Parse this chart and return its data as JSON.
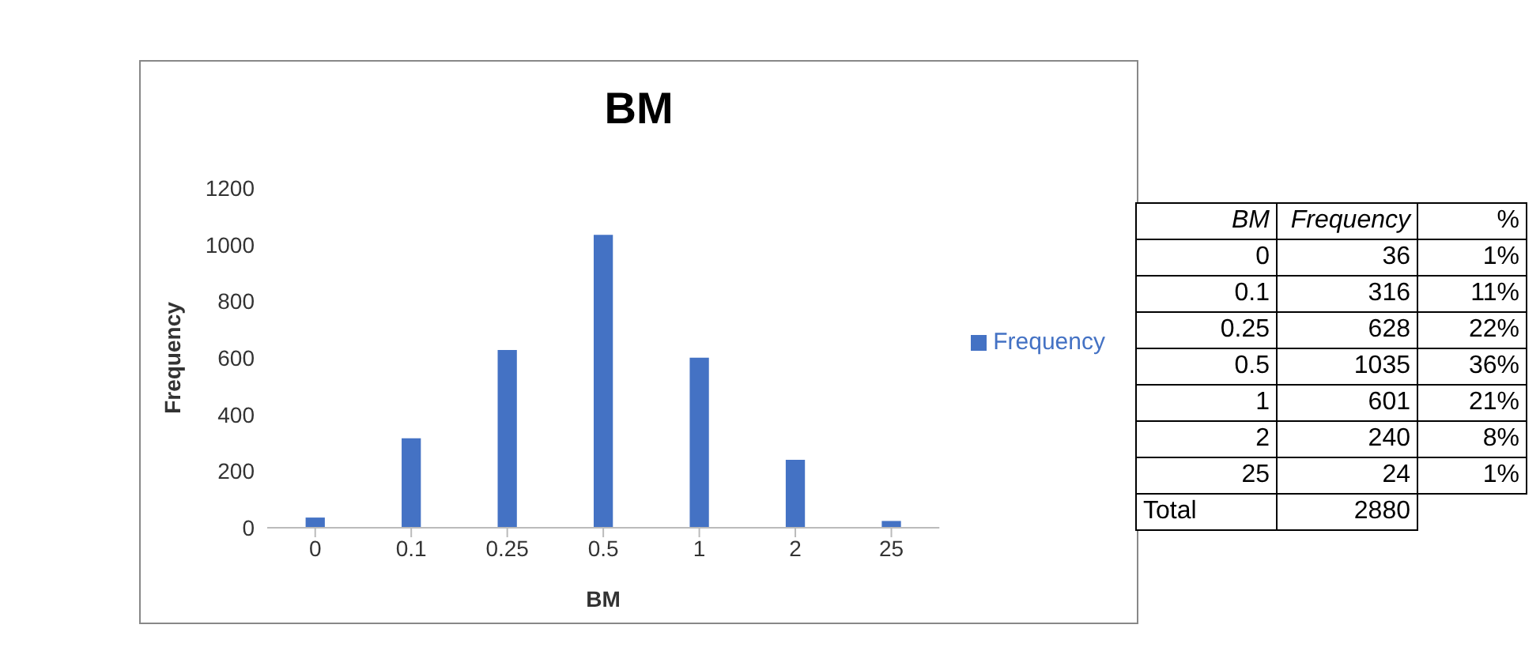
{
  "chart_data": [
    {
      "type": "bar",
      "title": "BM",
      "xlabel": "BM",
      "ylabel": "Frequency",
      "categories": [
        "0",
        "0.1",
        "0.25",
        "0.5",
        "1",
        "2",
        "25"
      ],
      "series": [
        {
          "name": "Frequency",
          "color": "#4472c4",
          "values": [
            36,
            316,
            628,
            1035,
            601,
            240,
            24
          ]
        }
      ],
      "ylim": [
        0,
        1200
      ],
      "yticks": [
        0,
        200,
        400,
        600,
        800,
        1000,
        1200
      ],
      "legend": "right"
    },
    {
      "type": "other",
      "annotations": [
        "BM",
        "Frequency",
        "%",
        "0",
        "36",
        "1%",
        "0.1",
        "316",
        "11%",
        "0.25",
        "628",
        "22%",
        "0.5",
        "1035",
        "36%",
        "1",
        "601",
        "21%",
        "2",
        "240",
        "8%",
        "25",
        "24",
        "1%",
        "Total",
        "2880"
      ]
    }
  ]
}
